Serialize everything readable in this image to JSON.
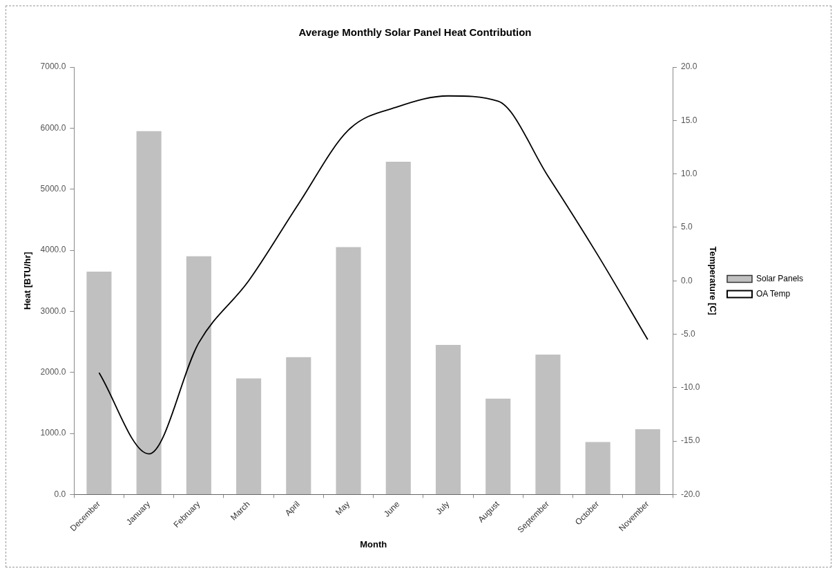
{
  "chart_data": {
    "type": "bar",
    "title": "Average Monthly Solar Panel Heat Contribution",
    "xlabel": "Month",
    "ylabel": "Heat [BTU/hr]",
    "y2label": "Temperature [C]",
    "categories": [
      "December",
      "January",
      "February",
      "March",
      "April",
      "May",
      "June",
      "July",
      "August",
      "September",
      "October",
      "November"
    ],
    "series": [
      {
        "name": "Solar Panels",
        "type": "bar",
        "color": "#c0c0c0",
        "values": [
          3650,
          5950,
          3900,
          1900,
          2250,
          4050,
          5450,
          2450,
          1570,
          2290,
          860,
          1070
        ]
      },
      {
        "name": "OA Temp",
        "type": "line",
        "axis": "y2",
        "color": "#000000",
        "values": [
          -8.6,
          -16.2,
          -5.8,
          0.0,
          7.2,
          14.1,
          16.3,
          17.3,
          16.8,
          9.8,
          2.4,
          -5.5
        ]
      }
    ],
    "ylim": [
      0,
      7000
    ],
    "yticks": [
      {
        "value": 0,
        "label": "0.0"
      },
      {
        "value": 1000,
        "label": "1000.0"
      },
      {
        "value": 2000,
        "label": "2000.0"
      },
      {
        "value": 3000,
        "label": "3000.0"
      },
      {
        "value": 4000,
        "label": "4000.0"
      },
      {
        "value": 5000,
        "label": "5000.0"
      },
      {
        "value": 6000,
        "label": "6000.0"
      },
      {
        "value": 7000,
        "label": "7000.0"
      }
    ],
    "y2lim": [
      -20,
      20
    ],
    "y2ticks": [
      {
        "value": -20,
        "label": "-20.0"
      },
      {
        "value": -15,
        "label": "-15.0"
      },
      {
        "value": -10,
        "label": "-10.0"
      },
      {
        "value": -5,
        "label": "-5.0"
      },
      {
        "value": 0,
        "label": "0.0"
      },
      {
        "value": 5,
        "label": "5.0"
      },
      {
        "value": 10,
        "label": "10.0"
      },
      {
        "value": 15,
        "label": "15.0"
      },
      {
        "value": 20,
        "label": "20.0"
      }
    ],
    "grid": false,
    "legend": "right",
    "marker": "none",
    "line_style": "solid"
  }
}
